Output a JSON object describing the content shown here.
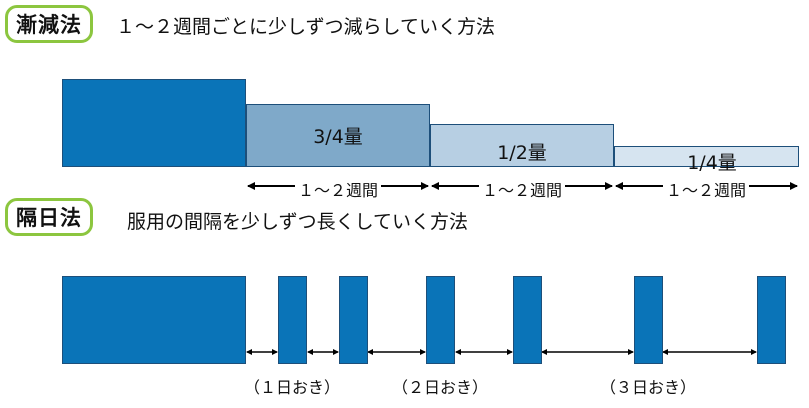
{
  "taper": {
    "badge": "漸減法",
    "description": "１～２週間ごとに少しずつ減らしていく方法",
    "steps": [
      {
        "label": "",
        "amount": 1.0
      },
      {
        "label": "3/4量",
        "amount": 0.75
      },
      {
        "label": "1/2量",
        "amount": 0.5
      },
      {
        "label": "1/4量",
        "amount": 0.25
      }
    ],
    "period_labels": [
      "１～２週間",
      "１～２週間",
      "１～２週間"
    ]
  },
  "alternate": {
    "badge": "隔日法",
    "description": "服用の間隔を少しずつ長くしていく方法",
    "interval_labels": [
      "（１日おき）",
      "（２日おき）",
      "（３日おき）"
    ]
  },
  "colors": {
    "full": "#0a74b8",
    "three_quarter": "#7fa9c9",
    "half": "#b7cfe3",
    "quarter": "#d6e4f0",
    "badge_border": "#8cc63f"
  }
}
